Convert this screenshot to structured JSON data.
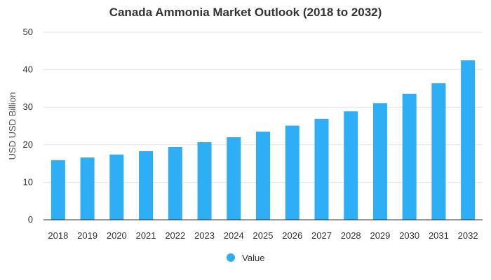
{
  "chart_data": {
    "type": "bar",
    "title": "Canada Ammonia Market Outlook (2018 to 2032)",
    "ylabel": "USD USD Billion",
    "xlabel": "",
    "categories": [
      "2018",
      "2019",
      "2020",
      "2021",
      "2022",
      "2023",
      "2024",
      "2025",
      "2026",
      "2027",
      "2028",
      "2029",
      "2030",
      "2031",
      "2032"
    ],
    "series": [
      {
        "name": "Value",
        "values": [
          15.9,
          16.6,
          17.4,
          18.3,
          19.4,
          20.7,
          22.0,
          23.5,
          25.1,
          26.9,
          28.9,
          31.1,
          33.6,
          36.4,
          42.5
        ]
      }
    ],
    "ylim": [
      0,
      50
    ],
    "yticks": [
      0,
      10,
      20,
      30,
      40,
      50
    ],
    "grid": true,
    "legend_position": "bottom",
    "bar_color": "#2eaef5",
    "grid_color": "#e6e6e6",
    "axis_color": "#333333",
    "text_color": "#333333"
  }
}
